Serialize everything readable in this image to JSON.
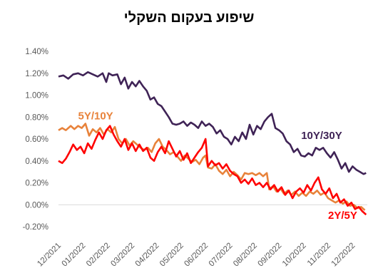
{
  "chart_data": {
    "type": "line",
    "title": "שיפוע בעקום השקלי",
    "xlabel": "",
    "ylabel": "",
    "ylim": [
      -0.2,
      1.4
    ],
    "grid": false,
    "legend": "none",
    "y_ticks": [
      "-0.20%",
      "0.00%",
      "0.20%",
      "0.40%",
      "0.60%",
      "0.80%",
      "1.00%",
      "1.20%",
      "1.40%"
    ],
    "x_ticks": [
      "12/2021",
      "01/2022",
      "02/2022",
      "03/2022",
      "04/2022",
      "05/2022",
      "06/2022",
      "07/2022",
      "08/2022",
      "09/2022",
      "10/2022",
      "11/2022",
      "12/2022"
    ],
    "series": [
      {
        "name": "10Y/30Y",
        "color": "#3f2356",
        "points": [
          [
            0,
            1.17
          ],
          [
            0.2,
            1.18
          ],
          [
            0.4,
            1.15
          ],
          [
            0.6,
            1.19
          ],
          [
            0.8,
            1.2
          ],
          [
            1.0,
            1.18
          ],
          [
            1.2,
            1.21
          ],
          [
            1.4,
            1.19
          ],
          [
            1.6,
            1.17
          ],
          [
            1.8,
            1.2
          ],
          [
            1.95,
            1.12
          ],
          [
            2.05,
            1.2
          ],
          [
            2.2,
            1.18
          ],
          [
            2.4,
            1.19
          ],
          [
            2.55,
            1.1
          ],
          [
            2.7,
            1.16
          ],
          [
            2.85,
            1.06
          ],
          [
            3.0,
            1.12
          ],
          [
            3.15,
            1.08
          ],
          [
            3.3,
            1.13
          ],
          [
            3.45,
            1.08
          ],
          [
            3.6,
            1.04
          ],
          [
            3.75,
            0.96
          ],
          [
            3.9,
            0.98
          ],
          [
            4.05,
            0.92
          ],
          [
            4.2,
            0.9
          ],
          [
            4.35,
            0.85
          ],
          [
            4.5,
            0.8
          ],
          [
            4.65,
            0.74
          ],
          [
            4.8,
            0.73
          ],
          [
            4.95,
            0.74
          ],
          [
            5.1,
            0.76
          ],
          [
            5.25,
            0.72
          ],
          [
            5.4,
            0.75
          ],
          [
            5.55,
            0.73
          ],
          [
            5.7,
            0.7
          ],
          [
            5.85,
            0.76
          ],
          [
            6.0,
            0.72
          ],
          [
            6.15,
            0.74
          ],
          [
            6.3,
            0.71
          ],
          [
            6.45,
            0.65
          ],
          [
            6.6,
            0.68
          ],
          [
            6.75,
            0.62
          ],
          [
            6.9,
            0.6
          ],
          [
            7.05,
            0.55
          ],
          [
            7.2,
            0.62
          ],
          [
            7.35,
            0.58
          ],
          [
            7.5,
            0.66
          ],
          [
            7.65,
            0.6
          ],
          [
            7.8,
            0.73
          ],
          [
            7.95,
            0.64
          ],
          [
            8.1,
            0.72
          ],
          [
            8.25,
            0.69
          ],
          [
            8.4,
            0.76
          ],
          [
            8.55,
            0.8
          ],
          [
            8.7,
            0.83
          ],
          [
            8.85,
            0.7
          ],
          [
            9.0,
            0.68
          ],
          [
            9.15,
            0.65
          ],
          [
            9.3,
            0.58
          ],
          [
            9.45,
            0.55
          ],
          [
            9.6,
            0.48
          ],
          [
            9.75,
            0.51
          ],
          [
            9.9,
            0.45
          ],
          [
            10.05,
            0.44
          ],
          [
            10.2,
            0.47
          ],
          [
            10.35,
            0.45
          ],
          [
            10.5,
            0.52
          ],
          [
            10.65,
            0.5
          ],
          [
            10.8,
            0.52
          ],
          [
            10.95,
            0.47
          ],
          [
            11.1,
            0.43
          ],
          [
            11.25,
            0.48
          ],
          [
            11.4,
            0.41
          ],
          [
            11.55,
            0.33
          ],
          [
            11.7,
            0.38
          ],
          [
            11.85,
            0.3
          ],
          [
            12.0,
            0.35
          ],
          [
            12.15,
            0.32
          ],
          [
            12.3,
            0.3
          ],
          [
            12.45,
            0.28
          ],
          [
            12.55,
            0.29
          ]
        ]
      },
      {
        "name": "5Y/10Y",
        "color": "#e8823a",
        "points": [
          [
            0,
            0.68
          ],
          [
            0.15,
            0.7
          ],
          [
            0.3,
            0.68
          ],
          [
            0.5,
            0.72
          ],
          [
            0.65,
            0.69
          ],
          [
            0.8,
            0.72
          ],
          [
            0.95,
            0.7
          ],
          [
            1.1,
            0.74
          ],
          [
            1.25,
            0.63
          ],
          [
            1.4,
            0.69
          ],
          [
            1.55,
            0.66
          ],
          [
            1.7,
            0.7
          ],
          [
            1.85,
            0.64
          ],
          [
            2.0,
            0.69
          ],
          [
            2.15,
            0.66
          ],
          [
            2.3,
            0.71
          ],
          [
            2.45,
            0.6
          ],
          [
            2.6,
            0.56
          ],
          [
            2.75,
            0.6
          ],
          [
            2.9,
            0.54
          ],
          [
            3.05,
            0.58
          ],
          [
            3.2,
            0.55
          ],
          [
            3.35,
            0.52
          ],
          [
            3.5,
            0.5
          ],
          [
            3.65,
            0.52
          ],
          [
            3.8,
            0.48
          ],
          [
            3.95,
            0.56
          ],
          [
            4.1,
            0.6
          ],
          [
            4.25,
            0.53
          ],
          [
            4.4,
            0.5
          ],
          [
            4.55,
            0.46
          ],
          [
            4.7,
            0.48
          ],
          [
            4.85,
            0.44
          ],
          [
            5.0,
            0.4
          ],
          [
            5.15,
            0.45
          ],
          [
            5.3,
            0.42
          ],
          [
            5.45,
            0.39
          ],
          [
            5.6,
            0.41
          ],
          [
            5.75,
            0.37
          ],
          [
            5.9,
            0.43
          ],
          [
            6.0,
            0.45
          ],
          [
            6.1,
            0.34
          ],
          [
            6.25,
            0.33
          ],
          [
            6.4,
            0.37
          ],
          [
            6.55,
            0.31
          ],
          [
            6.7,
            0.28
          ],
          [
            6.85,
            0.32
          ],
          [
            7.0,
            0.26
          ],
          [
            7.15,
            0.3
          ],
          [
            7.3,
            0.27
          ],
          [
            7.45,
            0.23
          ],
          [
            7.6,
            0.29
          ],
          [
            7.75,
            0.28
          ],
          [
            7.9,
            0.29
          ],
          [
            8.05,
            0.27
          ],
          [
            8.2,
            0.29
          ],
          [
            8.35,
            0.26
          ],
          [
            8.5,
            0.29
          ],
          [
            8.6,
            0.14
          ],
          [
            8.75,
            0.17
          ],
          [
            8.9,
            0.12
          ],
          [
            9.05,
            0.15
          ],
          [
            9.2,
            0.1
          ],
          [
            9.35,
            0.13
          ],
          [
            9.5,
            0.09
          ],
          [
            9.65,
            0.12
          ],
          [
            9.8,
            0.08
          ],
          [
            9.95,
            0.11
          ],
          [
            10.1,
            0.08
          ],
          [
            10.25,
            0.12
          ],
          [
            10.4,
            0.1
          ],
          [
            10.55,
            0.13
          ],
          [
            10.7,
            0.09
          ],
          [
            10.85,
            0.11
          ],
          [
            11.0,
            0.06
          ],
          [
            11.15,
            0.04
          ],
          [
            11.3,
            0.02
          ],
          [
            11.45,
            0.04
          ],
          [
            11.6,
            0.01
          ],
          [
            11.75,
            0.03
          ],
          [
            11.9,
            -0.01
          ],
          [
            12.05,
            0.0
          ],
          [
            12.2,
            -0.03
          ],
          [
            12.35,
            -0.02
          ],
          [
            12.5,
            -0.05
          ]
        ]
      },
      {
        "name": "2Y/5Y",
        "color": "#ff0000",
        "points": [
          [
            0,
            0.4
          ],
          [
            0.15,
            0.38
          ],
          [
            0.3,
            0.42
          ],
          [
            0.45,
            0.48
          ],
          [
            0.6,
            0.55
          ],
          [
            0.75,
            0.5
          ],
          [
            0.9,
            0.53
          ],
          [
            1.05,
            0.47
          ],
          [
            1.2,
            0.56
          ],
          [
            1.35,
            0.51
          ],
          [
            1.5,
            0.59
          ],
          [
            1.65,
            0.66
          ],
          [
            1.8,
            0.6
          ],
          [
            1.95,
            0.68
          ],
          [
            2.1,
            0.72
          ],
          [
            2.25,
            0.64
          ],
          [
            2.4,
            0.58
          ],
          [
            2.55,
            0.53
          ],
          [
            2.7,
            0.6
          ],
          [
            2.85,
            0.5
          ],
          [
            3.0,
            0.56
          ],
          [
            3.15,
            0.49
          ],
          [
            3.3,
            0.55
          ],
          [
            3.45,
            0.49
          ],
          [
            3.6,
            0.52
          ],
          [
            3.75,
            0.43
          ],
          [
            3.9,
            0.4
          ],
          [
            4.05,
            0.48
          ],
          [
            4.2,
            0.53
          ],
          [
            4.35,
            0.47
          ],
          [
            4.5,
            0.58
          ],
          [
            4.65,
            0.51
          ],
          [
            4.8,
            0.44
          ],
          [
            4.95,
            0.49
          ],
          [
            5.1,
            0.41
          ],
          [
            5.25,
            0.47
          ],
          [
            5.4,
            0.38
          ],
          [
            5.55,
            0.43
          ],
          [
            5.7,
            0.48
          ],
          [
            5.85,
            0.52
          ],
          [
            6.0,
            0.6
          ],
          [
            6.1,
            0.35
          ],
          [
            6.25,
            0.4
          ],
          [
            6.4,
            0.36
          ],
          [
            6.55,
            0.38
          ],
          [
            6.7,
            0.33
          ],
          [
            6.85,
            0.37
          ],
          [
            7.0,
            0.31
          ],
          [
            7.15,
            0.28
          ],
          [
            7.3,
            0.26
          ],
          [
            7.45,
            0.2
          ],
          [
            7.6,
            0.23
          ],
          [
            7.75,
            0.19
          ],
          [
            7.9,
            0.24
          ],
          [
            8.05,
            0.18
          ],
          [
            8.2,
            0.2
          ],
          [
            8.35,
            0.16
          ],
          [
            8.5,
            0.2
          ],
          [
            8.65,
            0.14
          ],
          [
            8.8,
            0.18
          ],
          [
            8.95,
            0.12
          ],
          [
            9.1,
            0.16
          ],
          [
            9.25,
            0.09
          ],
          [
            9.4,
            0.13
          ],
          [
            9.55,
            0.06
          ],
          [
            9.7,
            0.12
          ],
          [
            9.85,
            0.15
          ],
          [
            10.0,
            0.11
          ],
          [
            10.15,
            0.18
          ],
          [
            10.3,
            0.13
          ],
          [
            10.45,
            0.2
          ],
          [
            10.6,
            0.25
          ],
          [
            10.75,
            0.14
          ],
          [
            10.9,
            0.1
          ],
          [
            11.05,
            0.15
          ],
          [
            11.2,
            0.06
          ],
          [
            11.35,
            0.1
          ],
          [
            11.5,
            0.02
          ],
          [
            11.65,
            0.05
          ],
          [
            11.8,
            -0.01
          ],
          [
            11.95,
            0.02
          ],
          [
            12.1,
            -0.04
          ],
          [
            12.25,
            -0.02
          ],
          [
            12.4,
            -0.06
          ],
          [
            12.55,
            -0.09
          ]
        ]
      }
    ]
  }
}
